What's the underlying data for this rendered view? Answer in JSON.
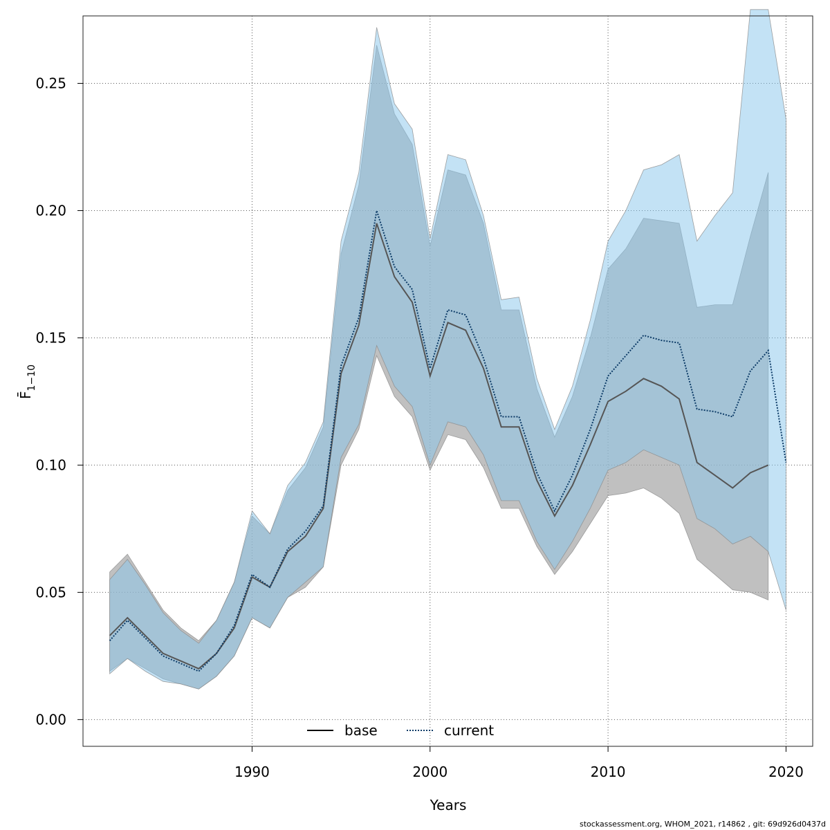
{
  "chart_data": {
    "type": "line",
    "xlabel": "Years",
    "ylabel": "F̄",
    "ylabel_subscript": "1−10",
    "xlim": [
      1980.5,
      2021.5
    ],
    "ylim": [
      -0.0105,
      0.2765
    ],
    "x_ticks": [
      1990,
      2000,
      2010,
      2020
    ],
    "y_ticks": [
      0.0,
      0.05,
      0.1,
      0.15,
      0.2,
      0.25
    ],
    "x_tick_labels": [
      "1990",
      "2000",
      "2010",
      "2020"
    ],
    "y_tick_labels": [
      "0.00",
      "0.05",
      "0.10",
      "0.15",
      "0.20",
      "0.25"
    ],
    "grid": true,
    "legend_position": "bottom-center",
    "series": [
      {
        "name": "base",
        "line_style": "solid",
        "line_color": "#555555",
        "band_color": "#9e9e9e",
        "x": [
          1982,
          1983,
          1984,
          1985,
          1986,
          1987,
          1988,
          1989,
          1990,
          1991,
          1992,
          1993,
          1994,
          1995,
          1996,
          1997,
          1998,
          1999,
          2000,
          2001,
          2002,
          2003,
          2004,
          2005,
          2006,
          2007,
          2008,
          2009,
          2010,
          2011,
          2012,
          2013,
          2014,
          2015,
          2016,
          2017,
          2018,
          2019
        ],
        "values": [
          0.033,
          0.04,
          0.033,
          0.026,
          0.023,
          0.02,
          0.026,
          0.036,
          0.056,
          0.052,
          0.066,
          0.072,
          0.083,
          0.136,
          0.155,
          0.195,
          0.174,
          0.164,
          0.135,
          0.156,
          0.153,
          0.138,
          0.115,
          0.115,
          0.094,
          0.08,
          0.092,
          0.108,
          0.125,
          0.129,
          0.134,
          0.131,
          0.126,
          0.101,
          0.096,
          0.091,
          0.097,
          0.1
        ],
        "lower": [
          0.019,
          0.024,
          0.02,
          0.016,
          0.014,
          0.012,
          0.017,
          0.025,
          0.04,
          0.036,
          0.048,
          0.052,
          0.06,
          0.1,
          0.114,
          0.143,
          0.127,
          0.119,
          0.098,
          0.112,
          0.11,
          0.099,
          0.083,
          0.083,
          0.068,
          0.057,
          0.066,
          0.077,
          0.088,
          0.089,
          0.091,
          0.087,
          0.081,
          0.063,
          0.057,
          0.051,
          0.05,
          0.047
        ],
        "upper": [
          0.058,
          0.065,
          0.054,
          0.043,
          0.036,
          0.031,
          0.039,
          0.054,
          0.08,
          0.073,
          0.09,
          0.099,
          0.115,
          0.183,
          0.21,
          0.265,
          0.238,
          0.226,
          0.186,
          0.216,
          0.214,
          0.195,
          0.161,
          0.161,
          0.13,
          0.111,
          0.127,
          0.15,
          0.177,
          0.185,
          0.197,
          0.196,
          0.195,
          0.162,
          0.163,
          0.163,
          0.19,
          0.215
        ]
      },
      {
        "name": "current",
        "line_style": "dotted",
        "line_color": "#0b3a66",
        "band_color": "#87c6ec",
        "x": [
          1982,
          1983,
          1984,
          1985,
          1986,
          1987,
          1988,
          1989,
          1990,
          1991,
          1992,
          1993,
          1994,
          1995,
          1996,
          1997,
          1998,
          1999,
          2000,
          2001,
          2002,
          2003,
          2004,
          2005,
          2006,
          2007,
          2008,
          2009,
          2010,
          2011,
          2012,
          2013,
          2014,
          2015,
          2016,
          2017,
          2018,
          2019,
          2020
        ],
        "values": [
          0.031,
          0.039,
          0.032,
          0.025,
          0.022,
          0.019,
          0.026,
          0.037,
          0.057,
          0.052,
          0.067,
          0.074,
          0.084,
          0.139,
          0.158,
          0.2,
          0.178,
          0.169,
          0.138,
          0.161,
          0.159,
          0.142,
          0.119,
          0.119,
          0.097,
          0.082,
          0.096,
          0.114,
          0.135,
          0.143,
          0.151,
          0.149,
          0.148,
          0.122,
          0.121,
          0.119,
          0.137,
          0.145,
          0.101
        ],
        "lower": [
          0.018,
          0.024,
          0.019,
          0.015,
          0.014,
          0.012,
          0.017,
          0.025,
          0.04,
          0.036,
          0.048,
          0.054,
          0.06,
          0.103,
          0.116,
          0.147,
          0.131,
          0.123,
          0.1,
          0.117,
          0.115,
          0.104,
          0.086,
          0.086,
          0.07,
          0.059,
          0.07,
          0.083,
          0.098,
          0.101,
          0.106,
          0.103,
          0.1,
          0.079,
          0.075,
          0.069,
          0.072,
          0.066,
          0.043
        ],
        "upper": [
          0.055,
          0.063,
          0.053,
          0.042,
          0.035,
          0.03,
          0.039,
          0.054,
          0.082,
          0.073,
          0.092,
          0.101,
          0.117,
          0.188,
          0.215,
          0.272,
          0.242,
          0.232,
          0.189,
          0.222,
          0.22,
          0.198,
          0.165,
          0.166,
          0.134,
          0.114,
          0.131,
          0.157,
          0.188,
          0.2,
          0.216,
          0.218,
          0.222,
          0.188,
          0.198,
          0.207,
          0.279,
          0.279,
          0.236
        ]
      }
    ]
  },
  "footer": {
    "credit": "stockassessment.org, WHOM_2021, r14862 , git: 69d926d0437d"
  }
}
